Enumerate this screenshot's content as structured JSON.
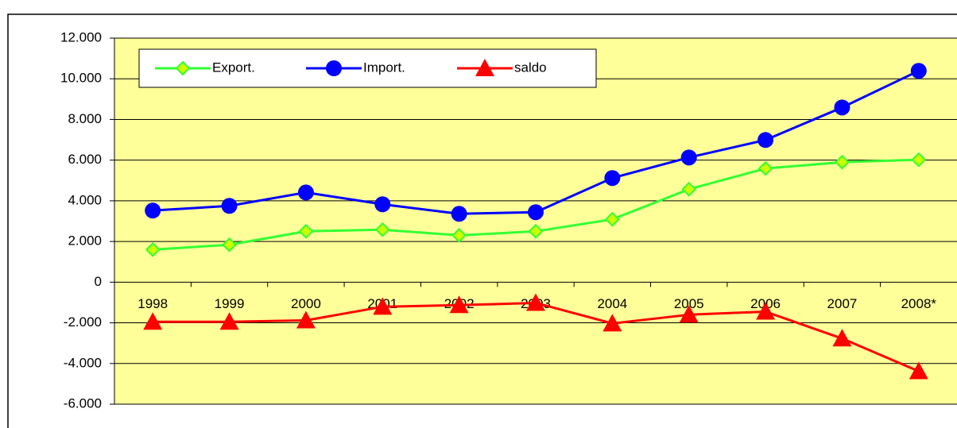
{
  "chart_data": {
    "type": "line",
    "categories": [
      "1998",
      "1999",
      "2000",
      "2001",
      "2002",
      "2003",
      "2004",
      "2005",
      "2006",
      "2007",
      "2008*"
    ],
    "series": [
      {
        "name": "Export.",
        "color": "#33ff33",
        "marker": "diamond",
        "values": [
          1600,
          1840,
          2500,
          2580,
          2300,
          2500,
          3090,
          4570,
          5590,
          5900,
          6020
        ]
      },
      {
        "name": "Import.",
        "color": "#0000ff",
        "marker": "circle",
        "values": [
          3520,
          3750,
          4410,
          3830,
          3360,
          3440,
          5120,
          6130,
          6990,
          8590,
          10390
        ]
      },
      {
        "name": "saldo",
        "color": "#ff0000",
        "marker": "triangle",
        "values": [
          -1950,
          -1950,
          -1880,
          -1210,
          -1130,
          -1020,
          -2030,
          -1600,
          -1450,
          -2770,
          -4380
        ]
      }
    ],
    "ylim": [
      -6000,
      12000
    ],
    "yticks": [
      {
        "value": -6000,
        "label": "-6.000"
      },
      {
        "value": -4000,
        "label": "-4.000"
      },
      {
        "value": -2000,
        "label": "-2.000"
      },
      0,
      {
        "value": 2000,
        "label": "2.000"
      },
      {
        "value": 4000,
        "label": "4.000"
      },
      {
        "value": 6000,
        "label": "6.000"
      },
      {
        "value": 8000,
        "label": "8.000"
      },
      {
        "value": 10000,
        "label": "10.000"
      },
      {
        "value": 12000,
        "label": "12.000"
      }
    ],
    "grid": true,
    "plot_background": "#ffff99"
  }
}
